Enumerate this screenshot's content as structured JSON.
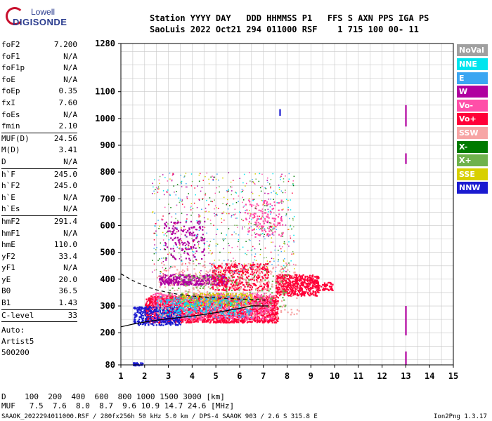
{
  "logo": {
    "line1": "Lowell",
    "line2": "DIGISONDE"
  },
  "header": {
    "labels": "Station YYYY DAY   DDD HHMMSS P1   FFS S AXN PPS IGA PS",
    "values": "SaoLuis 2022 Oct21 294 011000 RSF    1 715 100 00- 11"
  },
  "params": [
    {
      "label": "foF2",
      "value": "7.200"
    },
    {
      "label": "foF1",
      "value": "N/A"
    },
    {
      "label": "foF1p",
      "value": "N/A"
    },
    {
      "label": "foE",
      "value": "N/A"
    },
    {
      "label": "foEp",
      "value": "0.35"
    },
    {
      "label": "fxI",
      "value": "7.60"
    },
    {
      "label": "foEs",
      "value": "N/A"
    },
    {
      "label": "fmin",
      "value": "2.10"
    },
    {
      "sep": true
    },
    {
      "label": "MUF(D)",
      "value": "24.56"
    },
    {
      "label": "M(D)",
      "value": "3.41"
    },
    {
      "label": "D",
      "value": "N/A"
    },
    {
      "sep": true
    },
    {
      "label": "h`F",
      "value": "245.0"
    },
    {
      "label": "h`F2",
      "value": "245.0"
    },
    {
      "label": "h`E",
      "value": "N/A"
    },
    {
      "label": "h`Es",
      "value": "N/A"
    },
    {
      "sep": true
    },
    {
      "label": "hmF2",
      "value": "291.4"
    },
    {
      "label": "hmF1",
      "value": "N/A"
    },
    {
      "label": "hmE",
      "value": "110.0"
    },
    {
      "label": "yF2",
      "value": "33.4"
    },
    {
      "label": "yF1",
      "value": "N/A"
    },
    {
      "label": "yE",
      "value": "20.0"
    },
    {
      "label": "B0",
      "value": "36.5"
    },
    {
      "label": "B1",
      "value": "1.43"
    },
    {
      "sep": true
    },
    {
      "label": "C-level",
      "value": "33"
    },
    {
      "sep": true
    }
  ],
  "auto_block": [
    "Auto:",
    "Artist5",
    "500200"
  ],
  "legend": [
    {
      "label": "NoVal",
      "color": "#a0a0a0"
    },
    {
      "label": "NNE",
      "color": "#00e5ee"
    },
    {
      "label": "E",
      "color": "#3aa6f2"
    },
    {
      "label": "W",
      "color": "#b0009f"
    },
    {
      "label": "Vo-",
      "color": "#ff4fa8"
    },
    {
      "label": "Vo+",
      "color": "#ff0038"
    },
    {
      "label": "SSW",
      "color": "#f7a5a5"
    },
    {
      "label": "X-",
      "color": "#007a00"
    },
    {
      "label": "X+",
      "color": "#6fb24c"
    },
    {
      "label": "SSE",
      "color": "#d8d000"
    },
    {
      "label": "NNW",
      "color": "#1a1ad0"
    }
  ],
  "bottom": {
    "d_row": "D    100  200  400  600  800 1000 1500 3000 [km]",
    "muf_row": "MUF   7.5  7.6  8.0  8.7  9.6 10.9 14.7 24.6 [MHz]"
  },
  "footer": {
    "left": "SAAOK_2022294011000.RSF / 280fx256h 50 kHz 5.0 km / DPS-4 SAAOK 903 / 2.6 S 315.8 E",
    "right": "Ion2Png 1.3.17"
  },
  "chart_data": {
    "type": "scatter",
    "xlim": [
      1,
      15
    ],
    "ylim": [
      80,
      1280
    ],
    "x_ticks": [
      1,
      2,
      3,
      4,
      5,
      6,
      7,
      8,
      9,
      10,
      11,
      12,
      13,
      14,
      15
    ],
    "y_ticks": [
      80,
      200,
      300,
      400,
      500,
      600,
      700,
      800,
      900,
      1000,
      1100,
      1280
    ],
    "grid": true,
    "legend_position": "right",
    "clusters": [
      {
        "name": "Vo+",
        "x": [
          2.0,
          7.6
        ],
        "y": [
          240,
          340
        ],
        "density": 2200
      },
      {
        "name": "Vo-",
        "x": [
          2.3,
          7.4
        ],
        "y": [
          250,
          350
        ],
        "density": 700
      },
      {
        "name": "NNW",
        "x": [
          1.5,
          3.5
        ],
        "y": [
          230,
          300
        ],
        "density": 350
      },
      {
        "name": "W",
        "x": [
          2.6,
          5.5
        ],
        "y": [
          380,
          420
        ],
        "density": 450
      },
      {
        "name": "W",
        "x": [
          2.8,
          4.5
        ],
        "y": [
          470,
          620
        ],
        "density": 160
      },
      {
        "name": "SSE",
        "x": [
          3.5,
          6.5
        ],
        "y": [
          300,
          350
        ],
        "density": 250
      },
      {
        "name": "Vo+",
        "x": [
          4.8,
          7.2
        ],
        "y": [
          360,
          460
        ],
        "density": 380
      },
      {
        "name": "Vo+",
        "x": [
          7.5,
          9.3
        ],
        "y": [
          340,
          420
        ],
        "density": 500
      },
      {
        "name": "E",
        "x": [
          2.5,
          6.5
        ],
        "y": [
          260,
          340
        ],
        "density": 220
      },
      {
        "name": "NNE",
        "x": [
          2.5,
          6.5
        ],
        "y": [
          270,
          330
        ],
        "density": 120
      },
      {
        "name": "X+",
        "x": [
          3.0,
          8.0
        ],
        "y": [
          300,
          420
        ],
        "density": 150
      },
      {
        "name": "SSW",
        "x": [
          2.5,
          8.5
        ],
        "y": [
          260,
          470
        ],
        "density": 400
      },
      {
        "name": "Vo-",
        "x": [
          6.2,
          7.8
        ],
        "y": [
          560,
          700
        ],
        "density": 140
      },
      {
        "name": "Vo+",
        "x": [
          9.2,
          9.9
        ],
        "y": [
          360,
          390
        ],
        "density": 60
      },
      {
        "name": "NNW",
        "x": [
          1.5,
          1.9
        ],
        "y": [
          80,
          90
        ],
        "density": 30
      }
    ],
    "marks": [
      {
        "name": "W",
        "x": 13.0,
        "y1": 970,
        "y2": 1050
      },
      {
        "name": "W",
        "x": 13.0,
        "y1": 830,
        "y2": 870
      },
      {
        "name": "W",
        "x": 13.0,
        "y1": 190,
        "y2": 300
      },
      {
        "name": "W",
        "x": 13.0,
        "y1": 80,
        "y2": 130
      },
      {
        "name": "NNW",
        "x": 7.7,
        "y1": 1010,
        "y2": 1035
      }
    ],
    "curves": [
      {
        "style": "dashed",
        "x": [
          1.0,
          1.5,
          2.0,
          2.5,
          3.0,
          3.5,
          4.0,
          4.5,
          5.0,
          5.5,
          6.0,
          6.5,
          7.0,
          7.2
        ],
        "y": [
          420,
          395,
          375,
          360,
          350,
          342,
          337,
          333,
          330,
          328,
          326,
          324,
          322,
          322
        ]
      },
      {
        "style": "solid",
        "x": [
          1.0,
          1.5,
          2.0,
          2.5,
          3.0,
          3.5,
          4.0,
          4.5,
          5.0,
          5.5,
          6.0,
          6.5,
          7.0,
          7.2
        ],
        "y": [
          222,
          232,
          240,
          247,
          252,
          257,
          262,
          268,
          275,
          283,
          291,
          300,
          300,
          300
        ]
      }
    ]
  }
}
